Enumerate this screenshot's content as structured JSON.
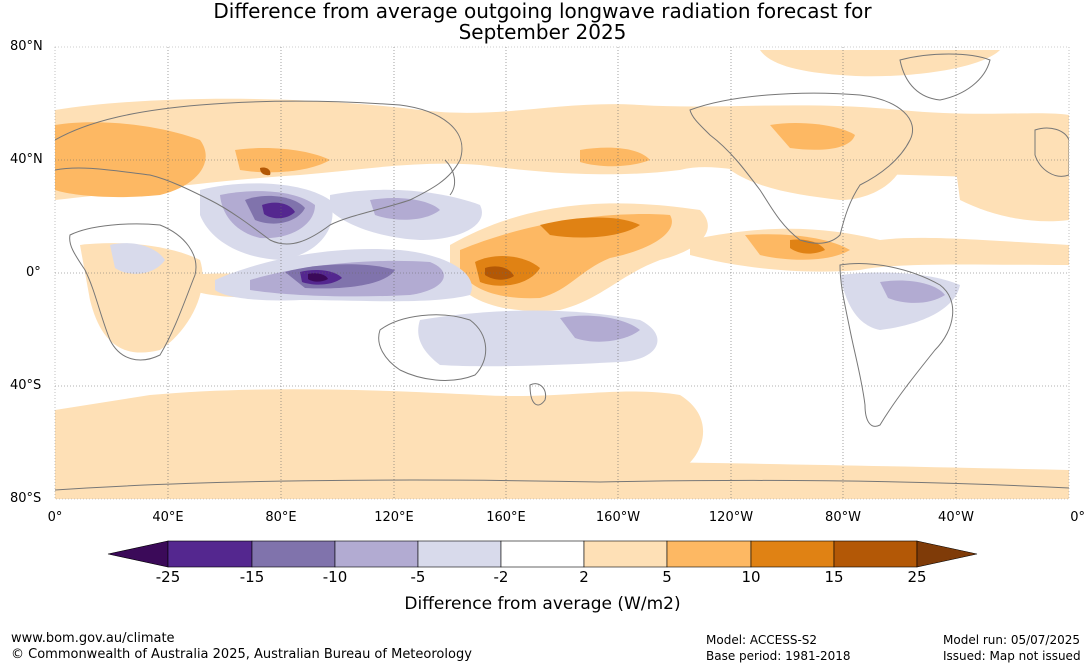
{
  "title_line1": "Difference from average outgoing longwave radiation forecast for",
  "title_line2": "September 2025",
  "lat_labels": [
    "80°N",
    "40°N",
    "0°",
    "40°S",
    "80°S"
  ],
  "lon_labels": [
    "0°",
    "40°E",
    "80°E",
    "120°E",
    "160°E",
    "160°W",
    "120°W",
    "80°W",
    "40°W",
    "0°"
  ],
  "colorbar": {
    "ticks": [
      "-25",
      "-15",
      "-10",
      "-5",
      "-2",
      "2",
      "5",
      "10",
      "15",
      "25"
    ],
    "colors": [
      "#3b0a59",
      "#54278f",
      "#8073ac",
      "#b2abd2",
      "#d8daeb",
      "#ffffff",
      "#fee0b6",
      "#fdb863",
      "#e08214",
      "#b35806",
      "#7f3b08"
    ],
    "title": "Difference from average (W/m2)"
  },
  "footer": {
    "url": "www.bom.gov.au/climate",
    "copyright": "© Commonwealth of Australia 2025, Australian Bureau of Meteorology",
    "model": "Model: ACCESS-S2",
    "base_period": "Base period: 1981-2018",
    "model_run": "Model run: 05/07/2025",
    "issued": "Issued: Map not issued"
  }
}
